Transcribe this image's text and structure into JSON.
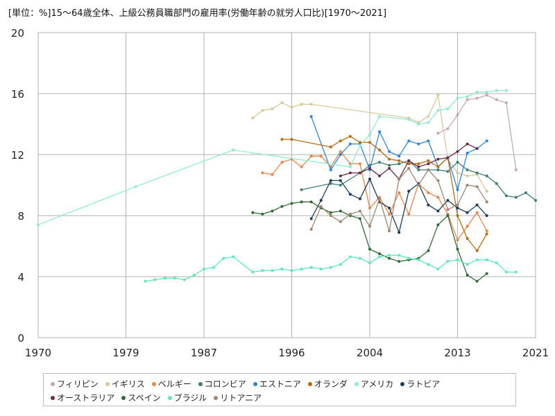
{
  "chart_data": {
    "type": "line",
    "title": "[単位：%]15～64歳全体、上級公務員職部門の雇用率(労働年齢の就労人口比)[1970～2021]",
    "xlabel": "",
    "ylabel": "",
    "xlim": [
      1970,
      2021
    ],
    "ylim": [
      0,
      20
    ],
    "x_ticks": [
      1970,
      1979,
      1987,
      1996,
      2004,
      2013,
      2021
    ],
    "y_ticks": [
      0,
      4,
      8,
      12,
      16,
      20
    ],
    "grid": true,
    "legend_position": "bottom",
    "series": [
      {
        "name": "フィリピン",
        "color": "#c8a8b0",
        "x": [
          2011,
          2012,
          2013,
          2014,
          2015,
          2016,
          2017,
          2018,
          2019
        ],
        "y": [
          13.4,
          13.7,
          14.6,
          15.6,
          15.7,
          15.9,
          15.6,
          15.4,
          11.0
        ]
      },
      {
        "name": "イギリス",
        "color": "#d8c898",
        "x": [
          1992,
          1993,
          1994,
          1995,
          1996,
          1997,
          1998,
          2008,
          2009,
          2010,
          2011,
          2012,
          2013,
          2014,
          2015,
          2016
        ],
        "y": [
          14.4,
          14.9,
          15.0,
          15.4,
          15.1,
          15.3,
          15.3,
          14.4,
          14.1,
          14.5,
          15.9,
          11.7,
          10.8,
          10.6,
          10.7,
          9.6
        ]
      },
      {
        "name": "ベルギー",
        "color": "#e8844a",
        "x": [
          1993,
          1994,
          1995,
          1996,
          1997,
          1998,
          1999,
          2000,
          2001,
          2002,
          2003,
          2004,
          2005,
          2006,
          2007,
          2008,
          2009,
          2010,
          2011,
          2012,
          2013,
          2014,
          2015,
          2016
        ],
        "y": [
          10.8,
          10.7,
          11.5,
          11.7,
          11.2,
          11.9,
          11.9,
          11.2,
          12.2,
          11.4,
          11.4,
          8.5,
          9.2,
          8.1,
          9.5,
          8.1,
          10.1,
          9.5,
          9.2,
          8.1,
          6.4,
          7.3,
          8.2,
          7.0
        ]
      },
      {
        "name": "コロンビア",
        "color": "#3e7d78",
        "x": [
          1997,
          2000,
          2001,
          2003,
          2004,
          2005,
          2006,
          2007,
          2008,
          2009,
          2010,
          2011,
          2012,
          2013,
          2014,
          2015,
          2016,
          2017,
          2018,
          2019,
          2020,
          2021
        ],
        "y": [
          9.7,
          10.1,
          10.0,
          10.8,
          11.3,
          11.5,
          11.3,
          11.4,
          11.6,
          11.0,
          11.0,
          11.0,
          10.9,
          11.5,
          11.0,
          10.8,
          10.6,
          10.1,
          9.3,
          9.2,
          9.5,
          9.0
        ]
      },
      {
        "name": "エストニア",
        "color": "#2a86e0",
        "x": [
          1998,
          2000,
          2001,
          2002,
          2003,
          2004,
          2005,
          2006,
          2007,
          2008,
          2009,
          2010,
          2011,
          2012,
          2013,
          2014,
          2015,
          2016
        ],
        "y": [
          14.5,
          11.0,
          12.0,
          12.7,
          12.7,
          11.0,
          13.5,
          12.2,
          11.9,
          12.9,
          12.7,
          12.9,
          11.2,
          11.8,
          9.7,
          12.1,
          12.4,
          12.9
        ]
      },
      {
        "name": "オランダ",
        "color": "#b86a10",
        "x": [
          1995,
          1996,
          2000,
          2001,
          2002,
          2003,
          2004,
          2005,
          2006,
          2007,
          2008,
          2009,
          2010,
          2011,
          2012,
          2013,
          2014,
          2015,
          2016
        ],
        "y": [
          13.0,
          13.0,
          12.5,
          12.9,
          13.2,
          12.8,
          12.8,
          12.3,
          11.7,
          11.6,
          11.4,
          11.4,
          11.6,
          11.2,
          11.8,
          8.0,
          6.5,
          5.7,
          6.8
        ]
      },
      {
        "name": "アメリカ",
        "color": "#90ead0",
        "x": [
          1970,
          1980,
          1990,
          2002,
          2003,
          2004,
          2005,
          2008,
          2009,
          2010,
          2011,
          2012,
          2013,
          2014,
          2015,
          2016,
          2017,
          2018
        ],
        "y": [
          7.4,
          9.9,
          12.3,
          11.2,
          12.6,
          13.3,
          14.5,
          14.3,
          14.0,
          14.1,
          14.9,
          15.0,
          15.7,
          15.8,
          16.1,
          16.1,
          16.2,
          16.2
        ]
      },
      {
        "name": "ラトビア",
        "color": "#1a3a5a",
        "x": [
          1998,
          1999,
          2000,
          2001,
          2002,
          2003,
          2004,
          2005,
          2006,
          2007,
          2008,
          2009,
          2010,
          2011,
          2012,
          2013,
          2014,
          2015,
          2016
        ],
        "y": [
          7.8,
          9.0,
          10.3,
          10.3,
          9.4,
          9.1,
          10.4,
          8.9,
          8.5,
          6.9,
          9.6,
          10.1,
          8.7,
          8.3,
          9.0,
          8.5,
          8.2,
          8.7,
          8.0
        ]
      },
      {
        "name": "オーストラリア",
        "color": "#6a2a48",
        "x": [
          2001,
          2002,
          2003,
          2004,
          2005,
          2006,
          2007,
          2008,
          2009,
          2010,
          2011,
          2012,
          2013,
          2014,
          2015
        ],
        "y": [
          10.6,
          10.8,
          10.8,
          11.1,
          10.6,
          11.1,
          10.4,
          11.6,
          11.2,
          11.4,
          11.7,
          11.8,
          12.2,
          12.7,
          12.4
        ]
      },
      {
        "name": "スペイン",
        "color": "#2f6b35",
        "x": [
          1992,
          1993,
          1994,
          1995,
          1996,
          1997,
          1998,
          1999,
          2000,
          2001,
          2002,
          2003,
          2004,
          2005,
          2006,
          2007,
          2008,
          2009,
          2010,
          2011,
          2012,
          2013,
          2014,
          2015,
          2016
        ],
        "y": [
          8.2,
          8.1,
          8.3,
          8.6,
          8.8,
          8.9,
          8.9,
          8.5,
          8.2,
          8.3,
          8.0,
          7.8,
          5.8,
          5.5,
          5.2,
          5.0,
          5.1,
          5.2,
          5.7,
          7.4,
          8.0,
          5.8,
          4.1,
          3.7,
          4.2
        ]
      },
      {
        "name": "ブラジル",
        "color": "#5fe8b8",
        "x": [
          1981,
          1982,
          1983,
          1984,
          1985,
          1986,
          1987,
          1988,
          1989,
          1990,
          1992,
          1993,
          1994,
          1995,
          1996,
          1997,
          1998,
          1999,
          2000,
          2001,
          2002,
          2003,
          2004,
          2005,
          2006,
          2007,
          2008,
          2009,
          2010,
          2011,
          2012,
          2013,
          2014,
          2015,
          2016,
          2017,
          2018,
          2019
        ],
        "y": [
          3.7,
          3.8,
          3.9,
          3.9,
          3.8,
          4.1,
          4.5,
          4.6,
          5.2,
          5.3,
          4.3,
          4.4,
          4.4,
          4.5,
          4.4,
          4.5,
          4.6,
          4.5,
          4.6,
          4.8,
          5.3,
          5.2,
          4.9,
          5.3,
          5.4,
          5.4,
          5.2,
          5.1,
          4.8,
          4.5,
          5.0,
          5.1,
          4.8,
          5.1,
          5.1,
          4.9,
          4.3,
          4.3
        ]
      },
      {
        "name": "リトアニア",
        "color": "#a08470",
        "x": [
          1998,
          1999,
          2000,
          2001,
          2002,
          2003,
          2004,
          2005,
          2006,
          2007,
          2008,
          2009,
          2010,
          2011,
          2012,
          2013,
          2014,
          2015,
          2016
        ],
        "y": [
          7.1,
          8.6,
          8.0,
          7.6,
          8.1,
          8.3,
          7.3,
          9.1,
          7.0,
          10.4,
          11.1,
          10.0,
          11.0,
          10.3,
          8.4,
          8.7,
          10.0,
          9.9,
          8.9
        ]
      }
    ]
  }
}
